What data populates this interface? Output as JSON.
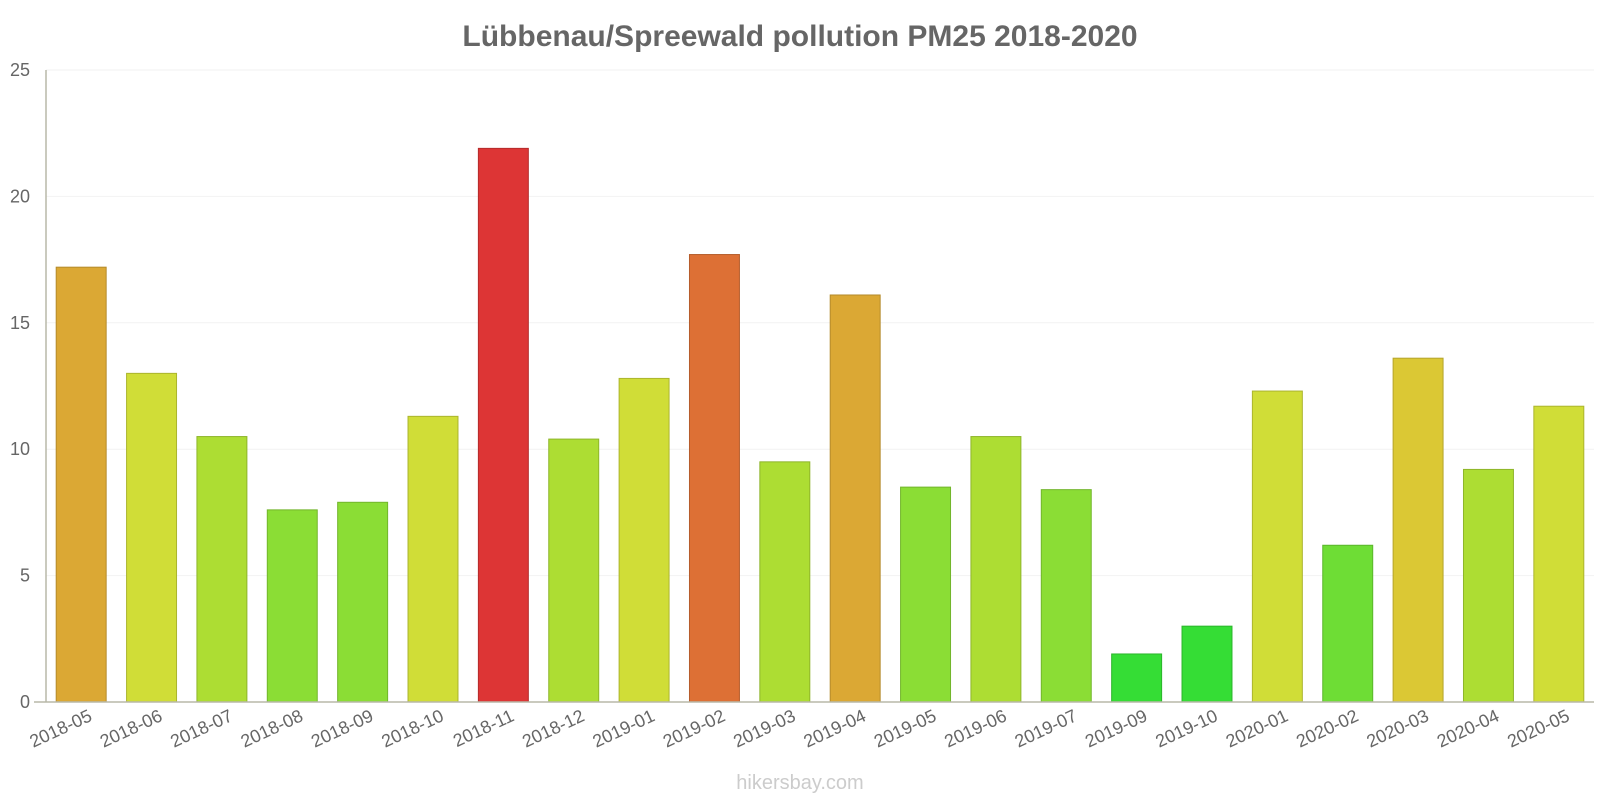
{
  "chart_data": {
    "type": "bar",
    "title": "Lübbenau/Spreewald pollution PM25 2018-2020",
    "xlabel": "",
    "ylabel": "",
    "ylim": [
      0,
      25
    ],
    "yticks": [
      "0",
      "5",
      "10",
      "15",
      "20",
      "25"
    ],
    "grid": true,
    "categories": [
      "2018-05",
      "2018-06",
      "2018-07",
      "2018-08",
      "2018-09",
      "2018-10",
      "2018-11",
      "2018-12",
      "2019-01",
      "2019-02",
      "2019-03",
      "2019-04",
      "2019-05",
      "2019-06",
      "2019-07",
      "2019-09",
      "2019-10",
      "2020-01",
      "2020-02",
      "2020-03",
      "2020-04",
      "2020-05"
    ],
    "values": [
      17.2,
      13.0,
      10.5,
      7.6,
      7.9,
      11.3,
      21.9,
      10.4,
      12.8,
      17.7,
      9.5,
      16.1,
      8.5,
      10.5,
      8.4,
      1.9,
      3.0,
      12.3,
      6.2,
      13.6,
      9.2,
      11.7
    ],
    "colors": [
      "#dba834",
      "#d0dd37",
      "#addd33",
      "#8bdd35",
      "#8bdd35",
      "#d0dd37",
      "#dd3535",
      "#addd33",
      "#d0dd37",
      "#dd7035",
      "#addd33",
      "#dba834",
      "#8bdd35",
      "#addd33",
      "#8bdd35",
      "#35dd35",
      "#35dd35",
      "#d0dd37",
      "#6edd35",
      "#dbc834",
      "#addd33",
      "#d0dd37"
    ]
  },
  "watermark": "hikersbay.com"
}
